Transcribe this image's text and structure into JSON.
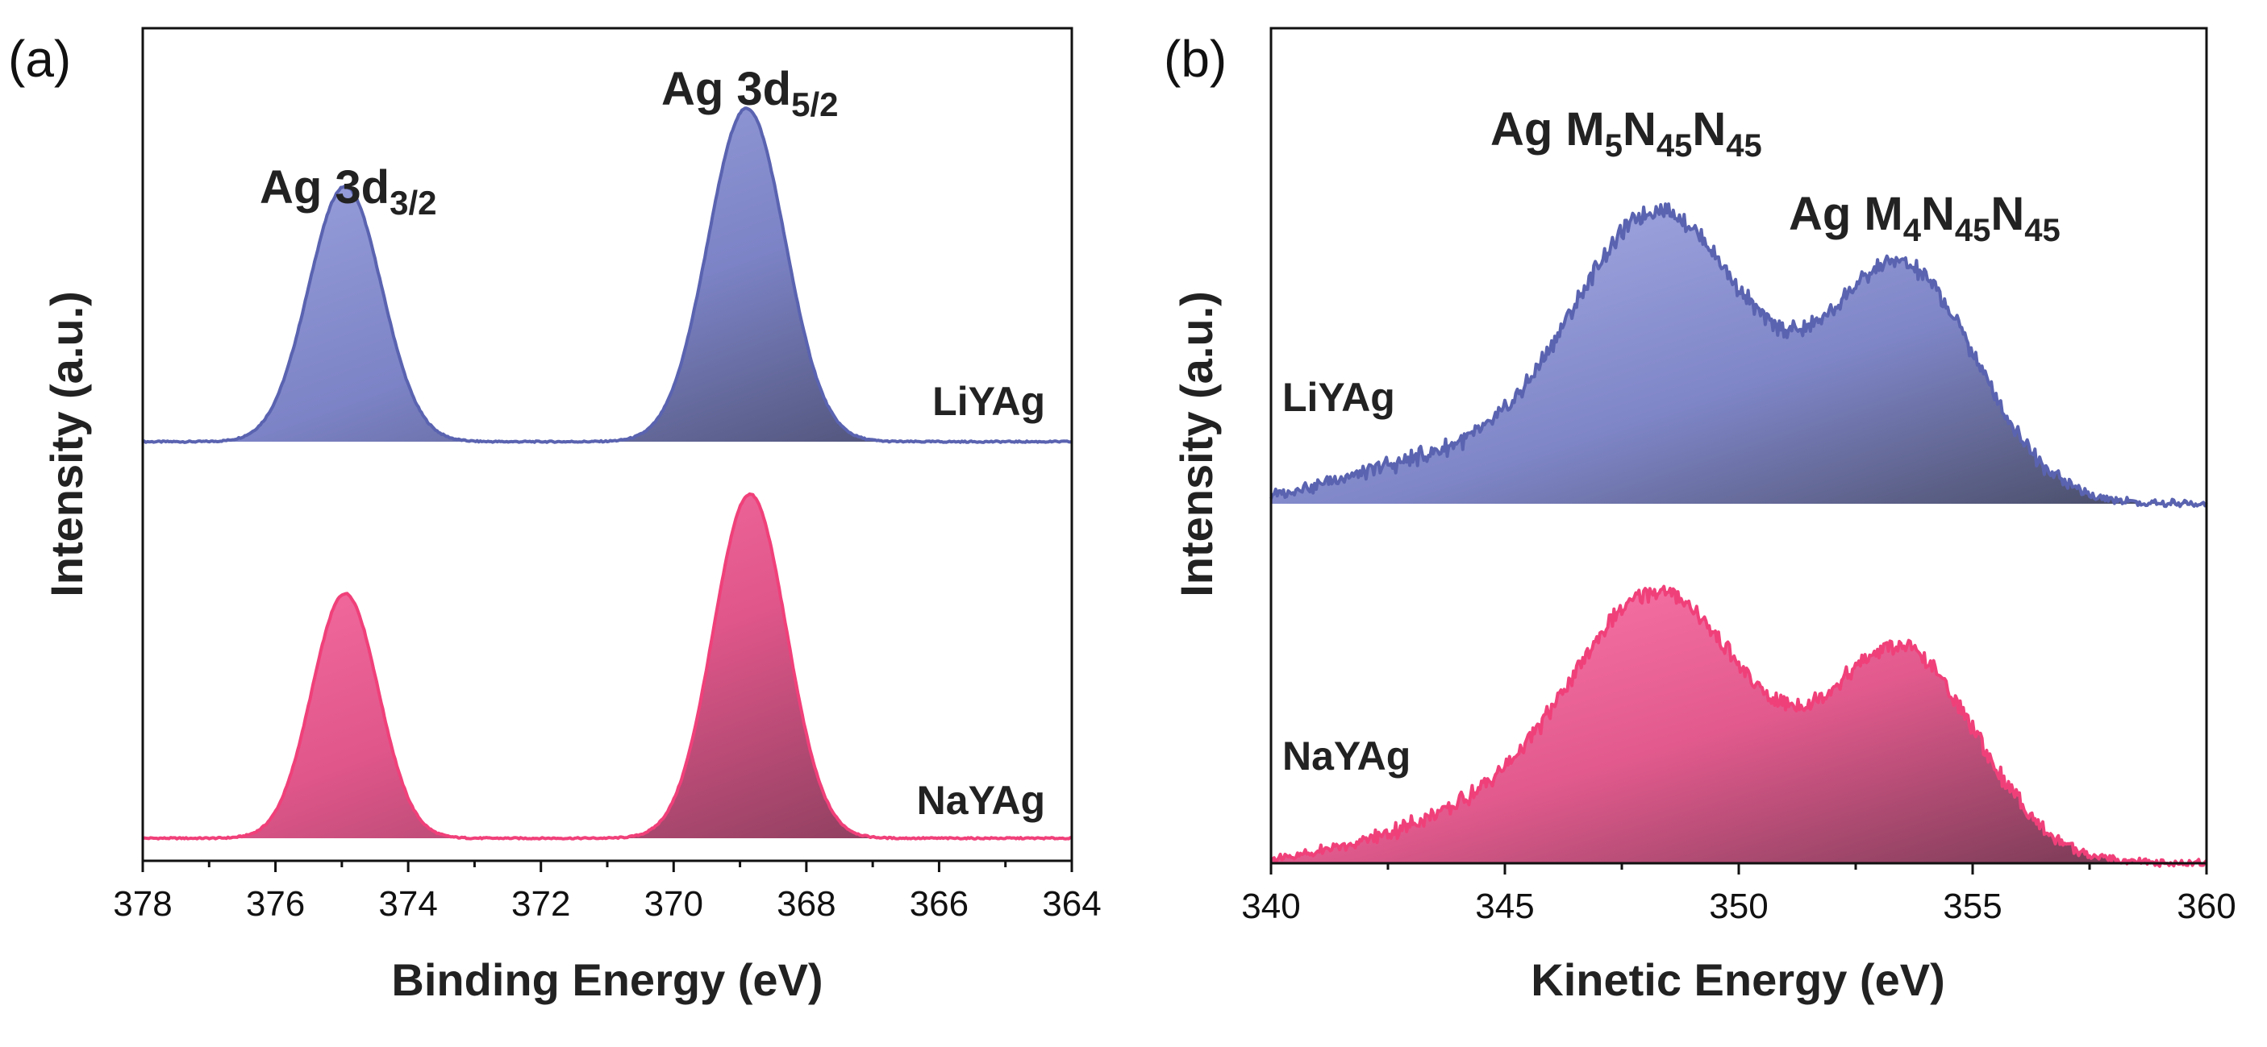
{
  "chart_data": [
    {
      "panel_label": "(a)",
      "type": "area",
      "xlabel": "Binding Energy (eV)",
      "ylabel": "Intensity (a.u.)",
      "xlim": [
        378,
        364
      ],
      "x_reversed": true,
      "xticks": [
        "378",
        "376",
        "374",
        "372",
        "370",
        "368",
        "366",
        "364"
      ],
      "yticks": [],
      "annotations": [
        {
          "base": "Ag 3d",
          "sub": "3/2",
          "x": 375.0
        },
        {
          "base": "Ag 3d",
          "sub": "5/2",
          "x": 368.9
        }
      ],
      "series": [
        {
          "name": "LiYAg",
          "color": "#5a63b0",
          "fill_light": "#9ea6e0",
          "fill_dark": "#4a4d78",
          "offset": 0.54,
          "baseline": 0.0,
          "peaks": [
            {
              "center": 374.95,
              "height": 0.36,
              "width": 0.55
            },
            {
              "center": 368.9,
              "height": 0.47,
              "width": 0.58
            }
          ]
        },
        {
          "name": "NaYAg",
          "color": "#f0407a",
          "fill_light": "#ff6fa6",
          "fill_dark": "#8a3555",
          "offset": 0.0,
          "baseline": 0.0,
          "peaks": [
            {
              "center": 374.95,
              "height": 0.345,
              "width": 0.5
            },
            {
              "center": 368.85,
              "height": 0.485,
              "width": 0.55
            }
          ]
        }
      ]
    },
    {
      "panel_label": "(b)",
      "type": "area",
      "xlabel": "Kinetic Energy (eV)",
      "ylabel": "Intensity (a.u.)",
      "xlim": [
        340,
        360
      ],
      "x_reversed": false,
      "xticks": [
        "340",
        "345",
        "350",
        "355",
        "360"
      ],
      "yticks": [],
      "annotations": [
        {
          "base": "Ag M",
          "sub1": "5",
          "mid": "N",
          "sub2": "45",
          "end": "N",
          "sub3": "45",
          "x": 348.3
        },
        {
          "base": "Ag M",
          "sub1": "4",
          "mid": "N",
          "sub2": "45",
          "end": "N",
          "sub3": "45",
          "x": 354.5
        }
      ],
      "series": [
        {
          "name": "LiYAg",
          "color": "#5a63b0",
          "fill_light": "#9ea6e0",
          "fill_dark": "#4a4d78",
          "offset": 0.5,
          "baseline": 0.0,
          "peaks": [
            {
              "center": 348.3,
              "height": 0.36,
              "width": 1.9
            },
            {
              "center": 353.5,
              "height": 0.29,
              "width": 1.6
            },
            {
              "center": 343.5,
              "height": 0.05,
              "width": 2.0
            }
          ]
        },
        {
          "name": "NaYAg",
          "color": "#f0407a",
          "fill_light": "#ff6fa6",
          "fill_dark": "#8a3555",
          "offset": 0.0,
          "baseline": 0.0,
          "peaks": [
            {
              "center": 348.3,
              "height": 0.33,
              "width": 1.9
            },
            {
              "center": 353.5,
              "height": 0.26,
              "width": 1.6
            },
            {
              "center": 344.2,
              "height": 0.05,
              "width": 2.0
            }
          ]
        }
      ]
    }
  ]
}
